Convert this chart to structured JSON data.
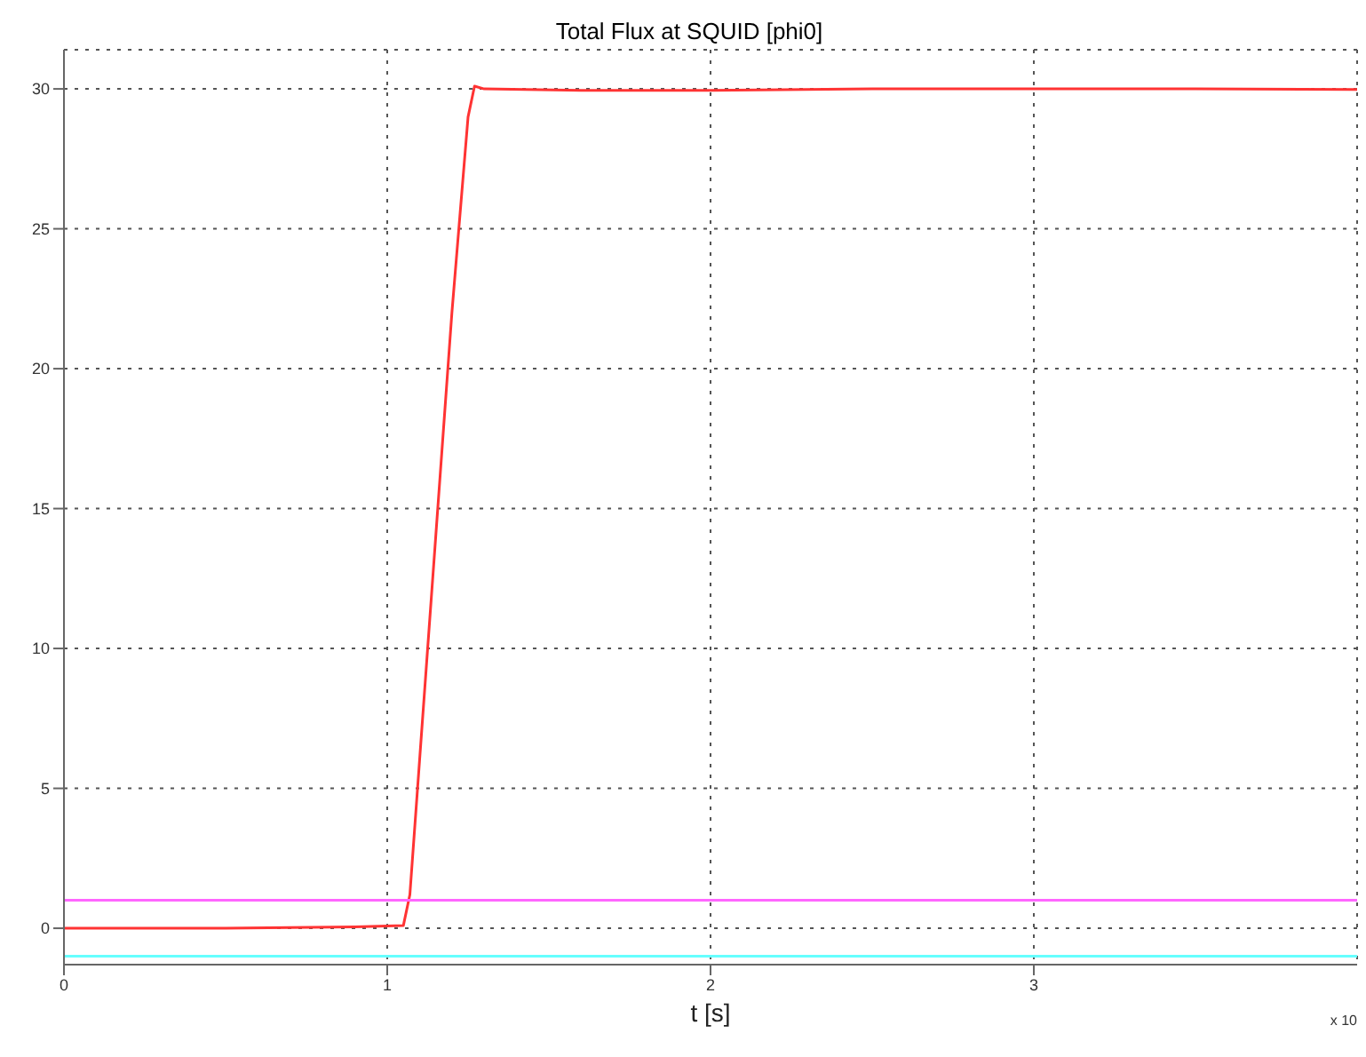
{
  "chart_data": {
    "type": "line",
    "title": "Total Flux at SQUID [phi0]",
    "xlabel": "t [s]",
    "xlim": [
      0,
      4
    ],
    "xticks": [
      0,
      1,
      2,
      3
    ],
    "ylim": [
      -1.3,
      31.4
    ],
    "yticks": [
      0,
      5,
      10,
      15,
      20,
      25,
      30
    ],
    "grid": true,
    "marker": "none",
    "line_style": "solid",
    "annotations": [
      "x 10"
    ],
    "series": [
      {
        "color": "#ff3333",
        "x": [
          0,
          0.5,
          0.9,
          1.05,
          1.07,
          1.1,
          1.15,
          1.2,
          1.25,
          1.27,
          1.3,
          1.6,
          2,
          2.5,
          3,
          3.5,
          4
        ],
        "values": [
          0,
          0,
          0.05,
          0.1,
          1.2,
          6,
          14,
          22,
          29,
          30.1,
          30,
          29.95,
          29.95,
          30,
          30,
          30,
          29.98
        ]
      },
      {
        "color": "#ff66ff",
        "x": [
          0,
          4
        ],
        "values": [
          1,
          1
        ]
      },
      {
        "color": "#66ffff",
        "x": [
          0,
          4
        ],
        "values": [
          -1,
          -1
        ]
      }
    ]
  }
}
